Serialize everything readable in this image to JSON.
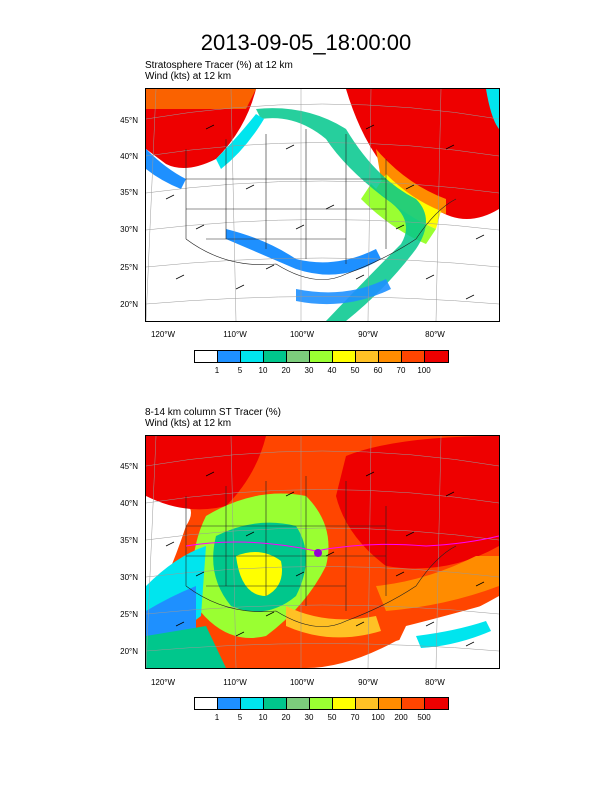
{
  "title": "2013-09-05_18:00:00",
  "panels": [
    {
      "subtitle_line1": "Stratosphere Tracer   (%)     at   12 km",
      "subtitle_line2": "Wind   (kts)     at   12 km",
      "lat_labels": [
        "45°N",
        "40°N",
        "35°N",
        "30°N",
        "25°N",
        "20°N"
      ],
      "lon_labels": [
        "120°W",
        "110°W",
        "100°W",
        "90°W",
        "80°W"
      ],
      "colorbar_labels": [
        "1",
        "5",
        "10",
        "20",
        "30",
        "40",
        "50",
        "60",
        "70",
        "100"
      ]
    },
    {
      "subtitle_line1": "8-14 km column ST Tracer   (%)",
      "subtitle_line2": "Wind   (kts)     at   12 km",
      "lat_labels": [
        "45°N",
        "40°N",
        "35°N",
        "30°N",
        "25°N",
        "20°N"
      ],
      "lon_labels": [
        "120°W",
        "110°W",
        "100°W",
        "90°W",
        "80°W"
      ],
      "colorbar_labels": [
        "1",
        "5",
        "10",
        "20",
        "30",
        "50",
        "70",
        "100",
        "200",
        "500"
      ]
    }
  ],
  "colorbar_colors": [
    "#ffffff",
    "#1e90ff",
    "#00e5ee",
    "#00c78c",
    "#7ccd7c",
    "#9aff32",
    "#ffff00",
    "#ffc125",
    "#ff8c00",
    "#ff4500",
    "#ee0000"
  ]
}
